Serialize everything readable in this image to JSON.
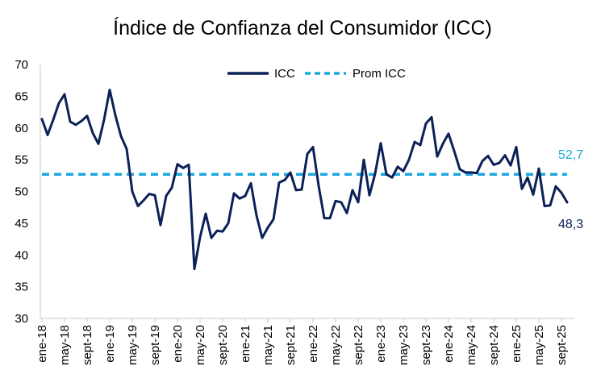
{
  "chart_data": {
    "type": "line",
    "title": "Índice de Confianza del Consumidor (ICC)",
    "xlabel": "",
    "ylabel": "",
    "ylim": [
      30,
      70
    ],
    "yticks": [
      "30",
      "35",
      "40",
      "45",
      "50",
      "55",
      "60",
      "65",
      "70"
    ],
    "grid": false,
    "legend_position": "top-center",
    "x_tick_labels": [
      "ene-18",
      "may-18",
      "sept-18",
      "ene-19",
      "may-19",
      "sept-19",
      "ene-20",
      "may-20",
      "sept-20",
      "ene-21",
      "may-21",
      "sept-21",
      "ene-22",
      "may-22",
      "sept-22",
      "ene-23",
      "may-23",
      "sept-23",
      "ene-24",
      "may-24",
      "sept-24",
      "ene-25",
      "may-25",
      "sept-25"
    ],
    "series": [
      {
        "name": "ICC",
        "color": "#0b2157",
        "style": "solid",
        "values": [
          61.4,
          58.9,
          61.3,
          63.9,
          65.3,
          61.0,
          60.5,
          61.1,
          61.9,
          59.2,
          57.5,
          61.3,
          66.0,
          62.0,
          58.7,
          56.7,
          50.0,
          47.7,
          48.6,
          49.6,
          49.4,
          44.7,
          49.3,
          50.6,
          54.3,
          53.7,
          54.2,
          37.8,
          42.8,
          46.5,
          42.7,
          43.8,
          43.7,
          45.0,
          49.7,
          48.9,
          49.3,
          51.3,
          46.2,
          42.7,
          44.3,
          45.6,
          51.4,
          51.8,
          53.0,
          50.2,
          50.3,
          55.9,
          57.0,
          50.9,
          45.8,
          45.8,
          48.5,
          48.3,
          46.6,
          50.2,
          48.3,
          55.0,
          49.4,
          52.8,
          57.6,
          52.7,
          52.2,
          53.9,
          53.2,
          55.0,
          57.8,
          57.3,
          60.7,
          61.7,
          55.5,
          57.5,
          59.1,
          56.4,
          53.5,
          53.0,
          53.0,
          52.9,
          54.8,
          55.6,
          54.2,
          54.5,
          55.7,
          54.1,
          57.0,
          50.4,
          52.2,
          49.5,
          53.6,
          47.7,
          47.8,
          50.8,
          49.8,
          48.3
        ]
      },
      {
        "name": "Prom ICC",
        "color": "#1ba8de",
        "style": "dashed",
        "value": 52.7
      }
    ],
    "annotations": [
      {
        "text": "52,7",
        "color": "#1ba8de"
      },
      {
        "text": "48,3",
        "color": "#0b2157"
      }
    ]
  }
}
